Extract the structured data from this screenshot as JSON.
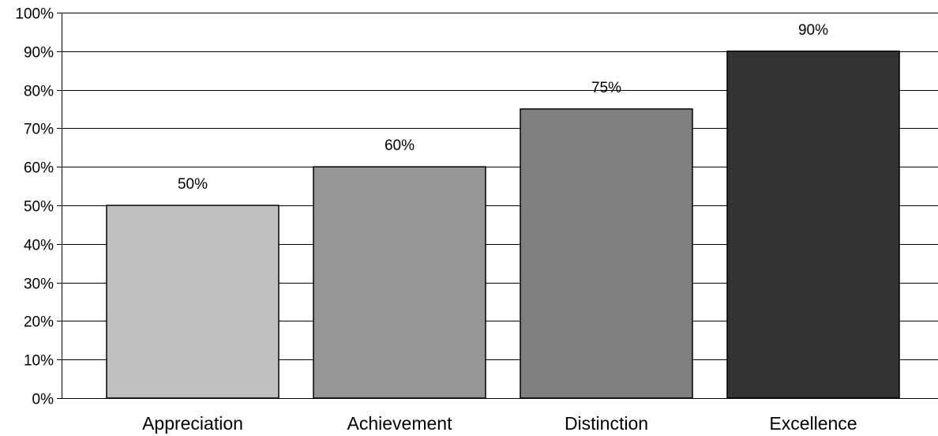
{
  "chart_data": {
    "type": "bar",
    "title": "",
    "xlabel": "",
    "ylabel": "",
    "categories": [
      "Appreciation",
      "Achievement",
      "Distinction",
      "Excellence"
    ],
    "values": [
      50,
      60,
      75,
      90
    ],
    "data_labels": [
      "50%",
      "60%",
      "75%",
      "90%"
    ],
    "ylim": [
      0,
      100
    ],
    "yticks": [
      0,
      10,
      20,
      30,
      40,
      50,
      60,
      70,
      80,
      90,
      100
    ],
    "ytick_labels": [
      "0%",
      "10%",
      "20%",
      "30%",
      "40%",
      "50%",
      "60%",
      "70%",
      "80%",
      "90%",
      "100%"
    ],
    "grid": true,
    "legend": "none",
    "bar_colors": [
      "#c0c0c0",
      "#969696",
      "#808080",
      "#333333"
    ],
    "bar_outline_color": "#000000",
    "gridline_color": "#000000"
  }
}
